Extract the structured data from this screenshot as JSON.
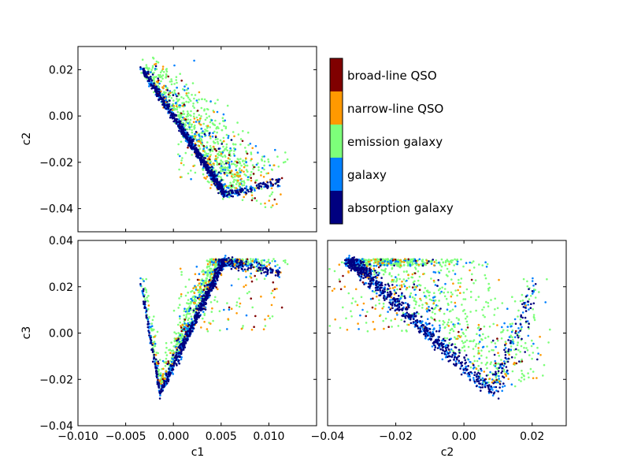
{
  "chart_data": [
    {
      "type": "scatter",
      "panel": "top-left",
      "xlabel": "",
      "ylabel": "c2",
      "xlim": [
        -0.01,
        0.015
      ],
      "ylim": [
        -0.05,
        0.03
      ],
      "xticks": [],
      "yticks": [
        {
          "value": 0.02,
          "label": "0.02"
        },
        {
          "value": 0.0,
          "label": "0.00"
        },
        {
          "value": -0.02,
          "label": "−0.02"
        },
        {
          "value": -0.04,
          "label": "−0.04"
        }
      ],
      "grid": false,
      "x_var": "c1",
      "y_var": "c2"
    },
    {
      "type": "scatter",
      "panel": "bottom-left",
      "xlabel": "c1",
      "ylabel": "c3",
      "xlim": [
        -0.01,
        0.015
      ],
      "ylim": [
        -0.04,
        0.04
      ],
      "xticks": [
        {
          "value": -0.01,
          "label": "−0.010"
        },
        {
          "value": -0.005,
          "label": "−0.005"
        },
        {
          "value": 0.0,
          "label": "0.000"
        },
        {
          "value": 0.005,
          "label": "0.005"
        },
        {
          "value": 0.01,
          "label": "0.010"
        }
      ],
      "yticks": [
        {
          "value": 0.04,
          "label": "0.04"
        },
        {
          "value": 0.02,
          "label": "0.02"
        },
        {
          "value": 0.0,
          "label": "0.00"
        },
        {
          "value": -0.02,
          "label": "−0.02"
        },
        {
          "value": -0.04,
          "label": "−0.04"
        }
      ],
      "grid": false,
      "x_var": "c1",
      "y_var": "c3"
    },
    {
      "type": "scatter",
      "panel": "bottom-right",
      "xlabel": "c2",
      "ylabel": "",
      "xlim": [
        -0.04,
        0.03
      ],
      "ylim": [
        -0.04,
        0.04
      ],
      "xticks": [
        {
          "value": -0.04,
          "label": "−0.04"
        },
        {
          "value": -0.02,
          "label": "−0.02"
        },
        {
          "value": 0.0,
          "label": "0.00"
        },
        {
          "value": 0.02,
          "label": "0.02"
        }
      ],
      "yticks": [],
      "grid": false,
      "x_var": "c2",
      "y_var": "c3"
    }
  ],
  "colorbar": {
    "placement": "top-right",
    "categories": [
      {
        "label": "broad-line QSO",
        "color": "#800000"
      },
      {
        "label": "narrow-line QSO",
        "color": "#ff9900"
      },
      {
        "label": "emission galaxy",
        "color": "#7dff7a"
      },
      {
        "label": "galaxy",
        "color": "#0080ff"
      },
      {
        "label": "absorption galaxy",
        "color": "#000080"
      }
    ]
  },
  "point_sizes": {
    "marker_radius": 1.3
  }
}
